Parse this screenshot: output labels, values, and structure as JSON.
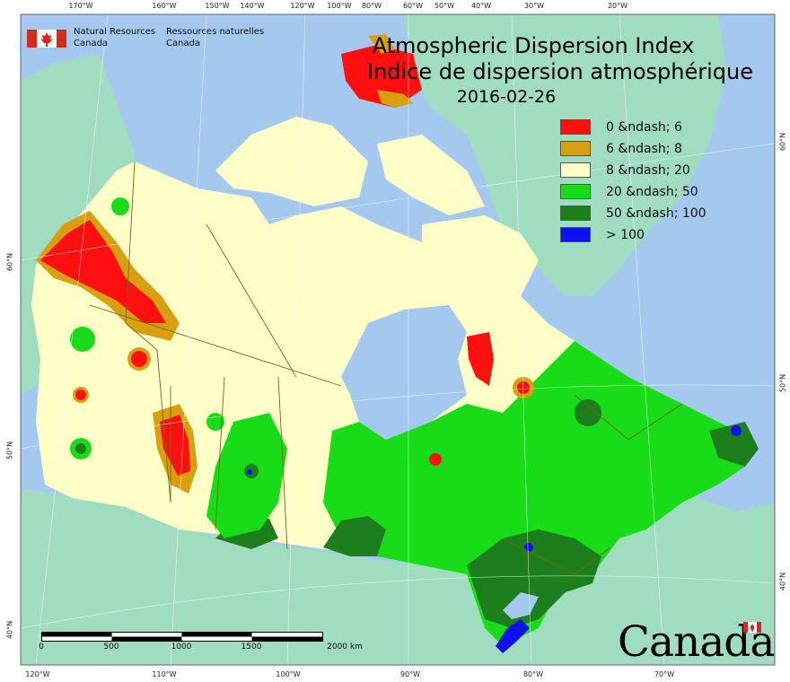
{
  "title": {
    "en": "Atmospheric Dispersion Index",
    "fr": "Indice de dispersion atmosphérique",
    "date": "2016-02-26"
  },
  "agency": {
    "en_line1": "Natural Resources",
    "en_line2": "Canada",
    "fr_line1": "Ressources naturelles",
    "fr_line2": "Canada"
  },
  "wordmark": "Canada",
  "legend": [
    {
      "label": "0 &ndash; 6",
      "color": "#ff1010"
    },
    {
      "label": "6 &ndash; 8",
      "color": "#d8a010"
    },
    {
      "label": "8 &ndash; 20",
      "color": "#ffffc8"
    },
    {
      "label": "20 &ndash; 50",
      "color": "#18dc18"
    },
    {
      "label": "50 &ndash; 100",
      "color": "#1c7e1c"
    },
    {
      "label": "> 100",
      "color": "#1010ee"
    }
  ],
  "colors": {
    "ocean": "#a4c8ee",
    "outside_land": "#a0dcc0",
    "map_bg": "#ffffff",
    "boundary": "#6e6a10",
    "flag_red": "#d52b1e"
  },
  "ticks": {
    "top": [
      "170°W",
      "160°W",
      "150°W",
      "140°W",
      "120°W",
      "100°W",
      "80°W",
      "60°W",
      "50°W",
      "40°W",
      "30°W",
      "20°W"
    ],
    "bottom": [
      "120°W",
      "110°W",
      "100°W",
      "90°W",
      "80°W",
      "70°W"
    ],
    "left": [
      "60°N",
      "50°N",
      "40°N"
    ],
    "right": [
      "60°N",
      "50°N",
      "40°N"
    ]
  },
  "scalebar": {
    "labels": [
      "0",
      "500",
      "1000",
      "1500",
      "2000 km"
    ]
  },
  "icons": {
    "agency_logo": "canada-flag-icon",
    "wordmark_flag": "canada-flag-icon"
  }
}
